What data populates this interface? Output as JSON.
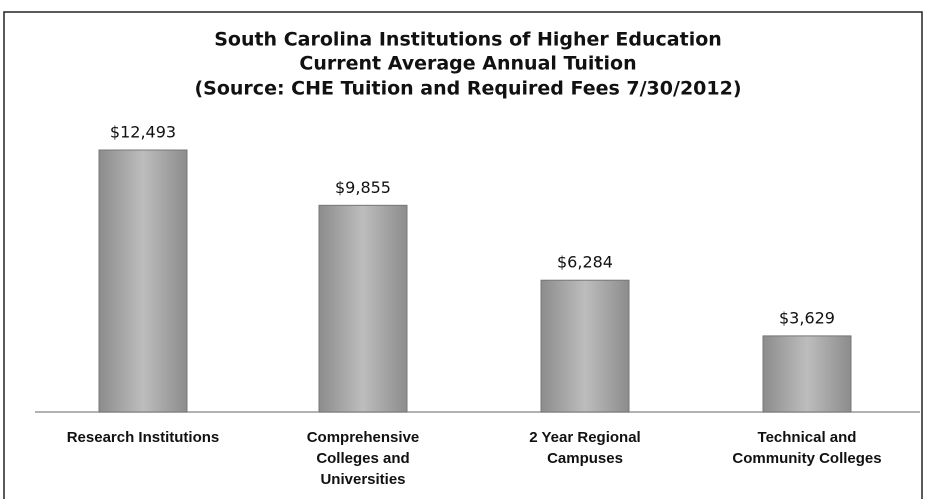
{
  "chart_data": {
    "type": "bar",
    "title": "South Carolina Institutions of Higher Education",
    "subtitle": [
      "Current Average Annual Tuition",
      "(Source:  CHE Tuition and Required Fees 7/30/2012)"
    ],
    "categories": [
      "Research Institutions",
      "Comprehensive Colleges and Universities",
      "2 Year Regional Campuses",
      "Technical and Community Colleges"
    ],
    "values": [
      12493,
      9855,
      6284,
      3629
    ],
    "value_labels": [
      "$12,493",
      "$9,855",
      "$6,284",
      "$3,629"
    ],
    "color": "#a9a9a9"
  }
}
